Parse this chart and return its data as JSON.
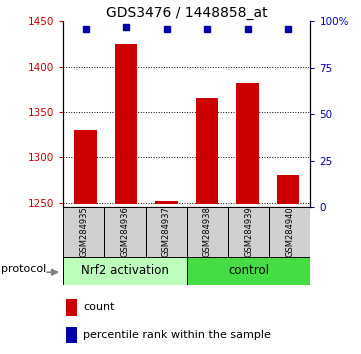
{
  "title": "GDS3476 / 1448858_at",
  "samples": [
    "GSM284935",
    "GSM284936",
    "GSM284937",
    "GSM284938",
    "GSM284939",
    "GSM284940"
  ],
  "counts": [
    1330,
    1425,
    1252,
    1365,
    1382,
    1280
  ],
  "percentile_ranks": [
    96,
    97,
    96,
    96,
    96,
    96
  ],
  "ylim_left": [
    1245,
    1450
  ],
  "ylim_right": [
    0,
    100
  ],
  "yticks_left": [
    1250,
    1300,
    1350,
    1400,
    1450
  ],
  "yticks_right": [
    0,
    25,
    50,
    75,
    100
  ],
  "bar_color": "#cc0000",
  "dot_color": "#0000aa",
  "bar_bottom": 1248,
  "groups": [
    {
      "label": "Nrf2 activation",
      "indices": [
        0,
        1,
        2
      ],
      "color": "#bbffbb"
    },
    {
      "label": "control",
      "indices": [
        3,
        4,
        5
      ],
      "color": "#44dd44"
    }
  ],
  "legend_items": [
    {
      "color": "#cc0000",
      "label": "count"
    },
    {
      "color": "#0000aa",
      "label": "percentile rank within the sample"
    }
  ],
  "background_color": "#ffffff",
  "left_tick_color": "#cc0000",
  "right_tick_color": "#0000aa",
  "sample_box_color": "#d0d0d0",
  "title_fontsize": 10,
  "tick_fontsize": 7.5,
  "sample_fontsize": 6.0,
  "group_fontsize": 8.5,
  "legend_fontsize": 8,
  "protocol_fontsize": 8
}
